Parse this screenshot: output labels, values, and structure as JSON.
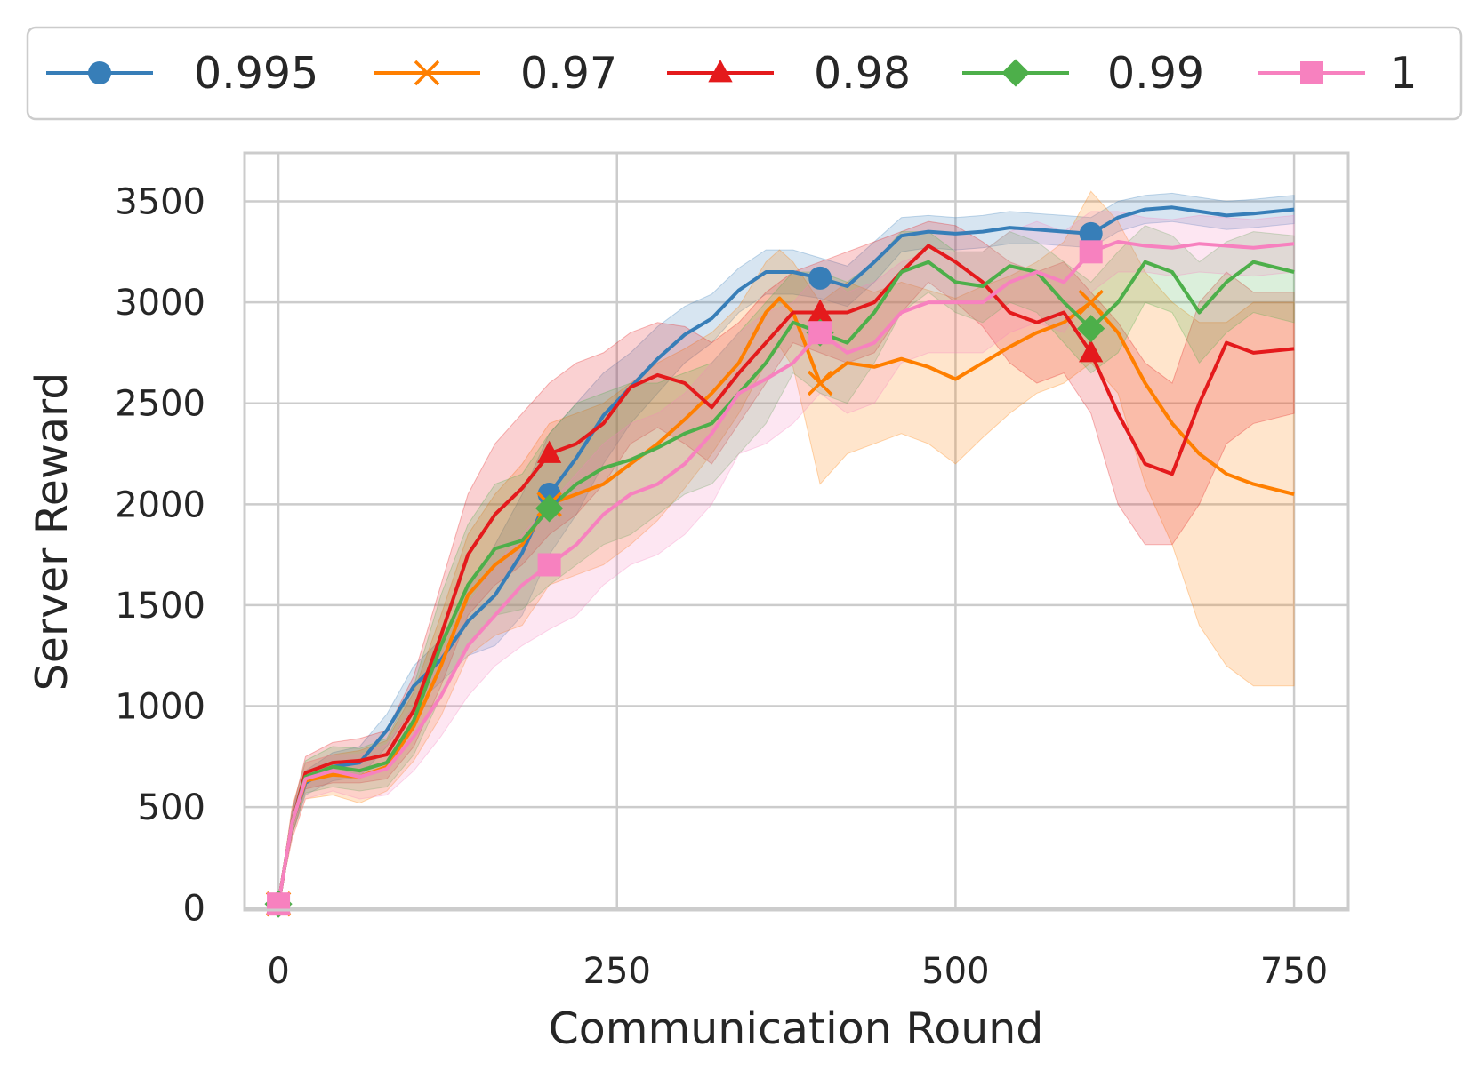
{
  "chart_data": {
    "type": "line",
    "title": "",
    "xlabel": "Communication Round",
    "ylabel": "Server Reward",
    "xlim": [
      -25,
      790
    ],
    "ylim": [
      -10,
      3740
    ],
    "xticks": [
      0,
      250,
      500,
      750
    ],
    "xtick_labels": [
      "0",
      "250",
      "500",
      "750"
    ],
    "yticks": [
      0,
      500,
      1000,
      1500,
      2000,
      2500,
      3000,
      3500
    ],
    "ytick_labels": [
      "0",
      "500",
      "1000",
      "1500",
      "2000",
      "2500",
      "3000",
      "3500"
    ],
    "grid": true,
    "legend_position": "top, outside plot",
    "marker_rounds": [
      0,
      200,
      400,
      600
    ],
    "series": [
      {
        "name": "0.995",
        "color": "#377eb8",
        "marker": "circle",
        "x": [
          0,
          10,
          20,
          40,
          60,
          80,
          100,
          120,
          140,
          160,
          180,
          200,
          220,
          240,
          260,
          280,
          300,
          320,
          340,
          360,
          380,
          400,
          420,
          440,
          460,
          480,
          500,
          520,
          540,
          560,
          580,
          600,
          620,
          640,
          660,
          680,
          700,
          720,
          750
        ],
        "y": [
          20,
          420,
          620,
          700,
          720,
          880,
          1100,
          1230,
          1420,
          1550,
          1760,
          2050,
          2230,
          2440,
          2580,
          2720,
          2840,
          2920,
          3060,
          3150,
          3150,
          3120,
          3080,
          3200,
          3330,
          3350,
          3340,
          3350,
          3370,
          3360,
          3350,
          3340,
          3420,
          3460,
          3470,
          3450,
          3430,
          3440,
          3460
        ],
        "band": [
          [
            20,
            20
          ],
          [
            360,
            480
          ],
          [
            560,
            680
          ],
          [
            630,
            770
          ],
          [
            650,
            800
          ],
          [
            800,
            960
          ],
          [
            1000,
            1200
          ],
          [
            1120,
            1330
          ],
          [
            1250,
            1580
          ],
          [
            1300,
            1800
          ],
          [
            1450,
            2050
          ],
          [
            1750,
            2350
          ],
          [
            1950,
            2500
          ],
          [
            2200,
            2650
          ],
          [
            2400,
            2750
          ],
          [
            2550,
            2880
          ],
          [
            2700,
            2980
          ],
          [
            2800,
            3040
          ],
          [
            2950,
            3170
          ],
          [
            3040,
            3260
          ],
          [
            3040,
            3260
          ],
          [
            3020,
            3220
          ],
          [
            2980,
            3180
          ],
          [
            3100,
            3300
          ],
          [
            3250,
            3420
          ],
          [
            3270,
            3430
          ],
          [
            3260,
            3420
          ],
          [
            3270,
            3430
          ],
          [
            3290,
            3450
          ],
          [
            3290,
            3440
          ],
          [
            3280,
            3430
          ],
          [
            3270,
            3420
          ],
          [
            3350,
            3500
          ],
          [
            3390,
            3530
          ],
          [
            3400,
            3540
          ],
          [
            3380,
            3520
          ],
          [
            3360,
            3500
          ],
          [
            3370,
            3510
          ],
          [
            3390,
            3530
          ]
        ]
      },
      {
        "name": "0.97",
        "color": "#ff7f00",
        "marker": "x",
        "x": [
          0,
          10,
          20,
          40,
          60,
          80,
          100,
          120,
          140,
          160,
          180,
          200,
          220,
          240,
          260,
          280,
          300,
          320,
          340,
          360,
          370,
          380,
          400,
          420,
          440,
          460,
          480,
          500,
          520,
          540,
          560,
          580,
          600,
          620,
          640,
          660,
          680,
          700,
          720,
          750
        ],
        "y": [
          20,
          420,
          630,
          660,
          650,
          700,
          900,
          1200,
          1550,
          1700,
          1800,
          2000,
          2050,
          2100,
          2200,
          2300,
          2420,
          2550,
          2700,
          2950,
          3020,
          2950,
          2600,
          2700,
          2680,
          2720,
          2680,
          2620,
          2700,
          2780,
          2850,
          2900,
          3000,
          2850,
          2600,
          2400,
          2250,
          2150,
          2100,
          2050
        ],
        "band": [
          [
            20,
            20
          ],
          [
            340,
            500
          ],
          [
            540,
            720
          ],
          [
            560,
            760
          ],
          [
            520,
            780
          ],
          [
            580,
            830
          ],
          [
            730,
            1070
          ],
          [
            950,
            1450
          ],
          [
            1250,
            1850
          ],
          [
            1350,
            2050
          ],
          [
            1400,
            2200
          ],
          [
            1600,
            2400
          ],
          [
            1650,
            2450
          ],
          [
            1700,
            2500
          ],
          [
            1800,
            2600
          ],
          [
            1920,
            2700
          ],
          [
            2080,
            2770
          ],
          [
            2250,
            2850
          ],
          [
            2450,
            2980
          ],
          [
            2700,
            3200
          ],
          [
            2780,
            3260
          ],
          [
            2680,
            3200
          ],
          [
            2100,
            3000
          ],
          [
            2250,
            3100
          ],
          [
            2300,
            3050
          ],
          [
            2350,
            3100
          ],
          [
            2300,
            3060
          ],
          [
            2200,
            3020
          ],
          [
            2330,
            3080
          ],
          [
            2450,
            3130
          ],
          [
            2550,
            3200
          ],
          [
            2600,
            3300
          ],
          [
            2700,
            3550
          ],
          [
            2550,
            3400
          ],
          [
            2100,
            3150
          ],
          [
            1800,
            3000
          ],
          [
            1400,
            2900
          ],
          [
            1200,
            2900
          ],
          [
            1100,
            3000
          ],
          [
            1100,
            3000
          ]
        ]
      },
      {
        "name": "0.98",
        "color": "#e41a1c",
        "marker": "triangle",
        "x": [
          0,
          10,
          20,
          40,
          60,
          80,
          100,
          120,
          140,
          160,
          180,
          200,
          220,
          240,
          260,
          280,
          300,
          320,
          340,
          360,
          380,
          400,
          420,
          440,
          460,
          480,
          500,
          520,
          540,
          560,
          580,
          600,
          620,
          640,
          660,
          680,
          700,
          720,
          750
        ],
        "y": [
          20,
          420,
          670,
          720,
          730,
          760,
          980,
          1350,
          1750,
          1950,
          2080,
          2250,
          2300,
          2400,
          2580,
          2640,
          2600,
          2480,
          2650,
          2800,
          2950,
          2950,
          2950,
          3000,
          3150,
          3280,
          3200,
          3100,
          2950,
          2900,
          2950,
          2750,
          2450,
          2200,
          2150,
          2500,
          2800,
          2750,
          2770
        ],
        "band": [
          [
            20,
            20
          ],
          [
            360,
            480
          ],
          [
            590,
            750
          ],
          [
            620,
            820
          ],
          [
            620,
            840
          ],
          [
            640,
            880
          ],
          [
            800,
            1150
          ],
          [
            1100,
            1600
          ],
          [
            1450,
            2050
          ],
          [
            1600,
            2300
          ],
          [
            1700,
            2450
          ],
          [
            1850,
            2600
          ],
          [
            1950,
            2700
          ],
          [
            2100,
            2750
          ],
          [
            2300,
            2850
          ],
          [
            2380,
            2900
          ],
          [
            2300,
            2880
          ],
          [
            2200,
            2800
          ],
          [
            2400,
            2900
          ],
          [
            2600,
            3050
          ],
          [
            2800,
            3150
          ],
          [
            2750,
            3200
          ],
          [
            2700,
            3250
          ],
          [
            2750,
            3300
          ],
          [
            2950,
            3350
          ],
          [
            3100,
            3400
          ],
          [
            3000,
            3380
          ],
          [
            2880,
            3300
          ],
          [
            2700,
            3200
          ],
          [
            2600,
            3150
          ],
          [
            2650,
            3200
          ],
          [
            2450,
            3050
          ],
          [
            2000,
            2900
          ],
          [
            1800,
            2700
          ],
          [
            1800,
            2600
          ],
          [
            2000,
            3000
          ],
          [
            2300,
            3150
          ],
          [
            2400,
            3050
          ],
          [
            2450,
            3050
          ]
        ]
      },
      {
        "name": "0.99",
        "color": "#4daf4a",
        "marker": "diamond",
        "x": [
          0,
          10,
          20,
          40,
          60,
          80,
          100,
          120,
          140,
          160,
          180,
          200,
          220,
          240,
          260,
          280,
          300,
          320,
          340,
          360,
          380,
          400,
          420,
          440,
          460,
          480,
          500,
          520,
          540,
          560,
          580,
          600,
          620,
          640,
          660,
          680,
          700,
          720,
          750
        ],
        "y": [
          20,
          420,
          650,
          700,
          680,
          720,
          930,
          1300,
          1600,
          1780,
          1820,
          1980,
          2100,
          2180,
          2220,
          2280,
          2350,
          2400,
          2550,
          2700,
          2900,
          2850,
          2800,
          2950,
          3150,
          3200,
          3100,
          3080,
          3180,
          3150,
          3000,
          2870,
          3000,
          3200,
          3150,
          2950,
          3100,
          3200,
          3150
        ],
        "band": [
          [
            20,
            20
          ],
          [
            360,
            480
          ],
          [
            570,
            730
          ],
          [
            600,
            800
          ],
          [
            580,
            790
          ],
          [
            600,
            840
          ],
          [
            760,
            1100
          ],
          [
            1050,
            1550
          ],
          [
            1300,
            1900
          ],
          [
            1450,
            2100
          ],
          [
            1480,
            2150
          ],
          [
            1600,
            2350
          ],
          [
            1700,
            2500
          ],
          [
            1800,
            2550
          ],
          [
            1850,
            2600
          ],
          [
            1950,
            2600
          ],
          [
            2050,
            2650
          ],
          [
            2100,
            2700
          ],
          [
            2250,
            2850
          ],
          [
            2400,
            3000
          ],
          [
            2650,
            3150
          ],
          [
            2550,
            3150
          ],
          [
            2500,
            3100
          ],
          [
            2700,
            3200
          ],
          [
            2950,
            3350
          ],
          [
            3050,
            3350
          ],
          [
            2950,
            3250
          ],
          [
            2900,
            3250
          ],
          [
            3000,
            3350
          ],
          [
            2950,
            3300
          ],
          [
            2800,
            3200
          ],
          [
            2650,
            3100
          ],
          [
            2750,
            3250
          ],
          [
            3000,
            3380
          ],
          [
            2950,
            3330
          ],
          [
            2700,
            3200
          ],
          [
            2850,
            3300
          ],
          [
            2950,
            3350
          ],
          [
            2900,
            3330
          ]
        ]
      },
      {
        "name": "1",
        "color": "#f781bf",
        "marker": "square",
        "x": [
          0,
          10,
          20,
          40,
          60,
          80,
          100,
          120,
          140,
          160,
          180,
          200,
          220,
          240,
          260,
          280,
          300,
          320,
          340,
          360,
          380,
          400,
          420,
          440,
          460,
          480,
          500,
          520,
          540,
          560,
          580,
          600,
          620,
          640,
          660,
          680,
          700,
          720,
          750
        ],
        "y": [
          20,
          420,
          640,
          680,
          650,
          690,
          850,
          1050,
          1300,
          1450,
          1600,
          1700,
          1800,
          1950,
          2050,
          2100,
          2200,
          2350,
          2550,
          2620,
          2700,
          2850,
          2750,
          2800,
          2950,
          3000,
          3000,
          3000,
          3100,
          3150,
          3100,
          3250,
          3300,
          3280,
          3270,
          3290,
          3280,
          3270,
          3290
        ],
        "band": [
          [
            20,
            20
          ],
          [
            340,
            490
          ],
          [
            540,
            720
          ],
          [
            580,
            760
          ],
          [
            540,
            760
          ],
          [
            560,
            810
          ],
          [
            680,
            1000
          ],
          [
            850,
            1250
          ],
          [
            1050,
            1500
          ],
          [
            1200,
            1700
          ],
          [
            1300,
            1850
          ],
          [
            1380,
            2000
          ],
          [
            1450,
            2150
          ],
          [
            1600,
            2300
          ],
          [
            1700,
            2400
          ],
          [
            1750,
            2450
          ],
          [
            1850,
            2550
          ],
          [
            2000,
            2700
          ],
          [
            2250,
            2850
          ],
          [
            2300,
            2950
          ],
          [
            2400,
            3000
          ],
          [
            2550,
            3150
          ],
          [
            2450,
            3050
          ],
          [
            2500,
            3100
          ],
          [
            2700,
            3200
          ],
          [
            2750,
            3250
          ],
          [
            2750,
            3250
          ],
          [
            2750,
            3250
          ],
          [
            2850,
            3350
          ],
          [
            2900,
            3400
          ],
          [
            2850,
            3350
          ],
          [
            3050,
            3450
          ],
          [
            3150,
            3450
          ],
          [
            3150,
            3420
          ],
          [
            3130,
            3410
          ],
          [
            3150,
            3430
          ],
          [
            3140,
            3420
          ],
          [
            3130,
            3410
          ],
          [
            3150,
            3430
          ]
        ]
      }
    ]
  }
}
